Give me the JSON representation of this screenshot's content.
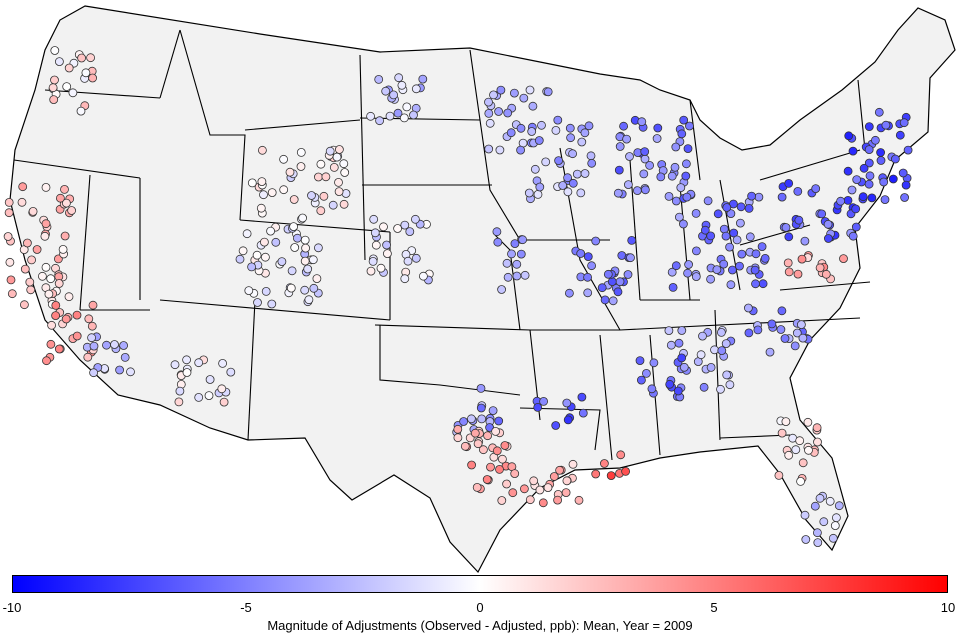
{
  "legend": {
    "scale_min": -10,
    "scale_max": 10,
    "ticks": [
      "-10",
      "-5",
      "0",
      "5",
      "10"
    ],
    "caption": "Magnitude of Adjustments (Observed - Adjusted, ppb): Mean, Year = 2009",
    "colors": {
      "negative": "#0000ff",
      "zero": "#ffffff",
      "positive": "#ff0000"
    }
  },
  "map": {
    "land_color": "#f2f2f2",
    "border_color": "#000000",
    "region": "Contiguous United States",
    "marker": "circle"
  }
}
